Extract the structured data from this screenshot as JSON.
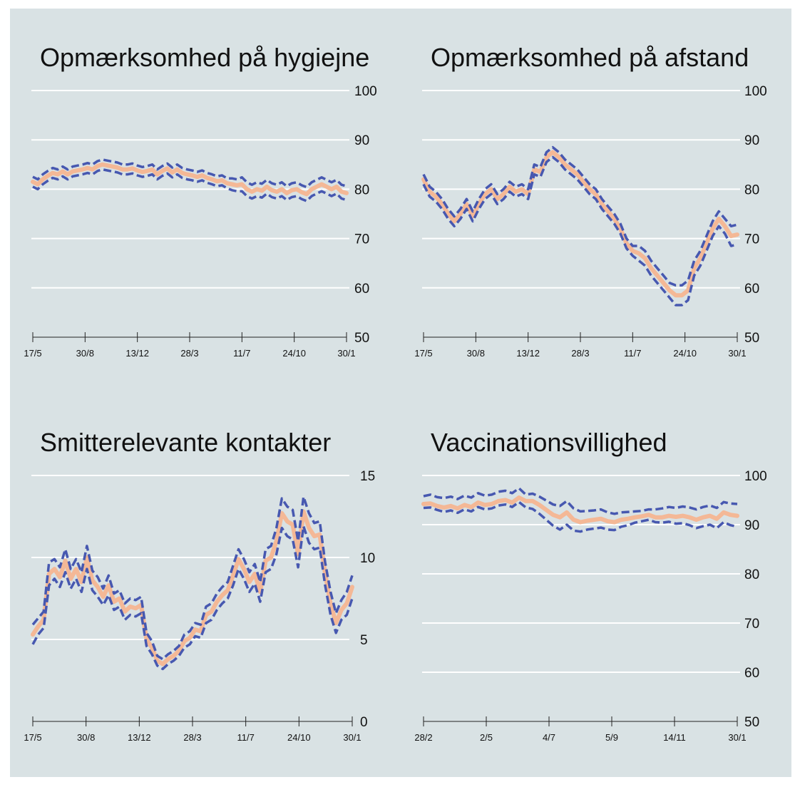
{
  "palette": {
    "background": "#d9e2e4",
    "grid": "#ffffff",
    "estimate": "#f4b896",
    "ci": "#4758b0"
  },
  "chart_data": [
    {
      "type": "line",
      "title": "Opmærksomhed på hygiejne",
      "ylim": [
        50,
        100
      ],
      "yticks": [
        "50",
        "60",
        "70",
        "80",
        "90",
        "100"
      ],
      "xtick_labels": [
        "17/5",
        "30/8",
        "13/12",
        "28/3",
        "11/7",
        "24/10",
        "30/1"
      ],
      "grid": true,
      "values": [
        81.5,
        81,
        82,
        82.7,
        83.3,
        83,
        83.6,
        83,
        83.6,
        83.8,
        84,
        84.3,
        84,
        84.7,
        85,
        84.8,
        84.6,
        84.4,
        84,
        84,
        84.2,
        83.8,
        83.5,
        83.7,
        84,
        83,
        83.7,
        84.2,
        83.4,
        84,
        83.3,
        83,
        82.8,
        82.5,
        82.8,
        82.3,
        82,
        81.6,
        81.8,
        81.2,
        81,
        80.8,
        81,
        80,
        79.5,
        80,
        79.7,
        80.5,
        79.8,
        79.5,
        80,
        79.2,
        79.8,
        80,
        79.4,
        79,
        80,
        80.5,
        81,
        80.5,
        80,
        80.5,
        79.5,
        79.2
      ],
      "ci_lower": [
        80.5,
        80,
        81,
        81.7,
        82.3,
        82,
        82.6,
        82,
        82.6,
        82.8,
        83,
        83.3,
        83,
        83.7,
        84,
        83.8,
        83.6,
        83.4,
        83,
        83,
        83.2,
        82.8,
        82.5,
        82.7,
        83,
        82,
        82.7,
        83.2,
        82.4,
        83,
        82.3,
        82,
        81.8,
        81.5,
        81.8,
        81.3,
        81,
        80.6,
        80.8,
        80.2,
        79.8,
        79.6,
        79.6,
        78.6,
        78.1,
        78.6,
        78.3,
        79.1,
        78.4,
        78.1,
        78.6,
        77.8,
        78.4,
        78.6,
        78,
        77.6,
        78.6,
        79.1,
        79.6,
        79.1,
        78.6,
        79.1,
        78.1,
        77.8
      ],
      "ci_upper": [
        82.5,
        82,
        83,
        83.7,
        84.3,
        84,
        84.6,
        84,
        84.6,
        84.8,
        85,
        85.3,
        85,
        85.7,
        86,
        85.8,
        85.6,
        85.4,
        85,
        85,
        85.2,
        84.8,
        84.5,
        84.7,
        85,
        84,
        84.7,
        85.2,
        84.4,
        85,
        84.3,
        84,
        83.8,
        83.5,
        83.8,
        83.3,
        83,
        82.6,
        82.8,
        82.2,
        82.2,
        82,
        82.4,
        81.4,
        80.9,
        81.4,
        81.1,
        81.9,
        81.2,
        80.9,
        81.4,
        80.6,
        81.2,
        81.4,
        80.8,
        80.4,
        81.4,
        81.9,
        82.4,
        81.9,
        81.4,
        81.9,
        80.9,
        80.6
      ]
    },
    {
      "type": "line",
      "title": "Opmærksomhed på afstand",
      "ylim": [
        50,
        100
      ],
      "yticks": [
        "50",
        "60",
        "70",
        "80",
        "90",
        "100"
      ],
      "xtick_labels": [
        "17/5",
        "30/8",
        "13/12",
        "28/3",
        "11/7",
        "24/10",
        "30/1"
      ],
      "grid": true,
      "values": [
        82,
        79.5,
        78.5,
        77,
        75,
        73.5,
        75,
        77,
        74.5,
        77,
        79,
        80,
        78,
        79,
        80.5,
        79.5,
        80,
        79,
        84,
        83.5,
        86.5,
        87.5,
        86.5,
        85,
        84,
        83,
        81.5,
        80,
        79,
        77,
        75.5,
        74,
        72,
        69,
        67.5,
        67,
        66,
        64,
        62.5,
        61,
        59.5,
        58.5,
        58.5,
        59.5,
        64,
        66,
        69,
        72,
        74,
        72.5,
        70.5,
        70.8
      ],
      "ci_lower": [
        81,
        78.5,
        77.5,
        76,
        74,
        72.5,
        74,
        76,
        73.5,
        76,
        78,
        79,
        77,
        78,
        79.5,
        78.5,
        79,
        78,
        83,
        82.5,
        85.5,
        86.5,
        85.5,
        84,
        83,
        82,
        80.5,
        79,
        78,
        76,
        74.5,
        73,
        71,
        68,
        66.5,
        65.5,
        64.5,
        62.5,
        61,
        59.5,
        58,
        56.5,
        56.5,
        57.5,
        62.5,
        64.5,
        67.5,
        70.5,
        72.5,
        71,
        68.5,
        68.8
      ],
      "ci_upper": [
        83,
        80.5,
        79.5,
        78,
        76,
        74.5,
        76,
        78,
        75.5,
        78,
        80,
        81,
        79,
        80,
        81.5,
        80.5,
        81,
        80,
        85,
        84.5,
        87.5,
        88.5,
        87.5,
        86,
        85,
        84,
        82.5,
        81,
        80,
        78,
        76.5,
        75,
        73,
        70,
        68.5,
        68.5,
        67.5,
        65.5,
        64,
        62.5,
        61,
        60.5,
        60.5,
        61.5,
        65.5,
        67.5,
        70.5,
        73.5,
        75.5,
        74,
        72.5,
        72.8
      ]
    },
    {
      "type": "line",
      "title": "Smitterelevante kontakter",
      "ylim": [
        0,
        15
      ],
      "yticks": [
        "0",
        "5",
        "10",
        "15"
      ],
      "xtick_labels": [
        "17/5",
        "30/8",
        "13/12",
        "28/3",
        "11/7",
        "24/10",
        "30/1"
      ],
      "grid": true,
      "values": [
        5.3,
        5.8,
        6.2,
        9,
        9.3,
        8.8,
        9.8,
        8.7,
        9.3,
        8.5,
        10,
        8.6,
        8.2,
        7.6,
        8.3,
        7.3,
        7.5,
        6.7,
        7,
        6.9,
        7.1,
        5,
        4.5,
        3.7,
        3.5,
        3.8,
        4,
        4.3,
        4.9,
        5.1,
        5.6,
        5.5,
        6.5,
        6.7,
        7.3,
        7.7,
        8,
        8.9,
        9.9,
        9.3,
        8.5,
        9,
        7.9,
        9.8,
        10,
        11,
        12.7,
        12.2,
        12,
        10.2,
        12.8,
        11.8,
        11.3,
        11.4,
        9,
        7.2,
        6,
        6.8,
        7.2,
        8.2
      ],
      "ci_lower": [
        4.7,
        5.3,
        5.7,
        8.3,
        8.7,
        8.2,
        9.1,
        8.1,
        8.7,
        7.9,
        9.3,
        8,
        7.6,
        7.1,
        7.7,
        6.8,
        7,
        6.2,
        6.5,
        6.4,
        6.6,
        4.6,
        4.1,
        3.4,
        3.2,
        3.5,
        3.7,
        4,
        4.5,
        4.7,
        5.2,
        5.1,
        6,
        6.2,
        6.8,
        7.2,
        7.5,
        8.3,
        9.3,
        8.7,
        7.9,
        8.4,
        7.3,
        9.1,
        9.3,
        10.2,
        11.8,
        11.3,
        11.1,
        9.4,
        11.9,
        10.9,
        10.5,
        10.6,
        8.3,
        6.5,
        5.4,
        6.2,
        6.5,
        7.5
      ],
      "ci_upper": [
        5.9,
        6.3,
        6.7,
        9.7,
        9.9,
        9.4,
        10.5,
        9.3,
        9.9,
        9.1,
        10.7,
        9.2,
        8.8,
        8.1,
        8.9,
        7.8,
        8,
        7.2,
        7.5,
        7.4,
        7.6,
        5.4,
        4.9,
        4,
        3.8,
        4.1,
        4.3,
        4.6,
        5.3,
        5.5,
        6,
        5.9,
        7,
        7.2,
        7.8,
        8.2,
        8.5,
        9.5,
        10.5,
        9.9,
        9.1,
        9.6,
        8.5,
        10.5,
        10.7,
        11.8,
        13.6,
        13.1,
        12.9,
        11,
        13.7,
        12.7,
        12.1,
        12.2,
        9.7,
        7.9,
        6.6,
        7.4,
        7.9,
        8.9
      ]
    },
    {
      "type": "line",
      "title": "Vaccinationsvillighed",
      "ylim": [
        50,
        100
      ],
      "yticks": [
        "50",
        "60",
        "70",
        "80",
        "90",
        "100"
      ],
      "xtick_labels": [
        "28/2",
        "2/5",
        "4/7",
        "5/9",
        "14/11",
        "30/1"
      ],
      "grid": true,
      "values": [
        94.2,
        94.3,
        93.8,
        93.5,
        93.8,
        93.3,
        94,
        93.6,
        94.5,
        94,
        94.2,
        94.8,
        95,
        94.5,
        95.5,
        94.8,
        94.8,
        94,
        93,
        92,
        91.5,
        92.5,
        91,
        90.5,
        90.8,
        91,
        91.2,
        90.7,
        90.5,
        91,
        91.2,
        91.5,
        91.7,
        92,
        91.5,
        91.5,
        91.8,
        91.6,
        91.8,
        91.5,
        91,
        91.5,
        91.8,
        91.2,
        92.5,
        92,
        91.8
      ],
      "ci_lower": [
        93.4,
        93.5,
        93,
        92.6,
        92.9,
        92.4,
        93.1,
        92.7,
        93.6,
        93.1,
        93.3,
        93.9,
        94.1,
        93.6,
        94.6,
        93.5,
        93.2,
        92.2,
        91,
        89.8,
        89,
        90,
        88.8,
        88.6,
        89,
        89.2,
        89.4,
        89,
        88.9,
        89.6,
        89.9,
        90.4,
        90.7,
        91,
        90.5,
        90.4,
        90.6,
        90.2,
        90.3,
        89.9,
        89.3,
        89.7,
        90,
        89.3,
        90.5,
        89.9,
        89.6
      ],
      "ci_upper": [
        95.8,
        96.1,
        95.6,
        95.4,
        95.7,
        95.2,
        95.9,
        95.5,
        96.4,
        95.9,
        96.1,
        96.7,
        96.9,
        96.4,
        97.4,
        96.1,
        96.3,
        95.7,
        94.9,
        94.1,
        93.8,
        94.8,
        93.3,
        92.7,
        92.8,
        92.9,
        93.1,
        92.5,
        92.2,
        92.5,
        92.6,
        92.7,
        92.8,
        93.1,
        93.1,
        93.3,
        93.6,
        93.4,
        93.7,
        93.5,
        93.1,
        93.6,
        93.9,
        93.4,
        94.6,
        94.3,
        94.2
      ]
    }
  ]
}
